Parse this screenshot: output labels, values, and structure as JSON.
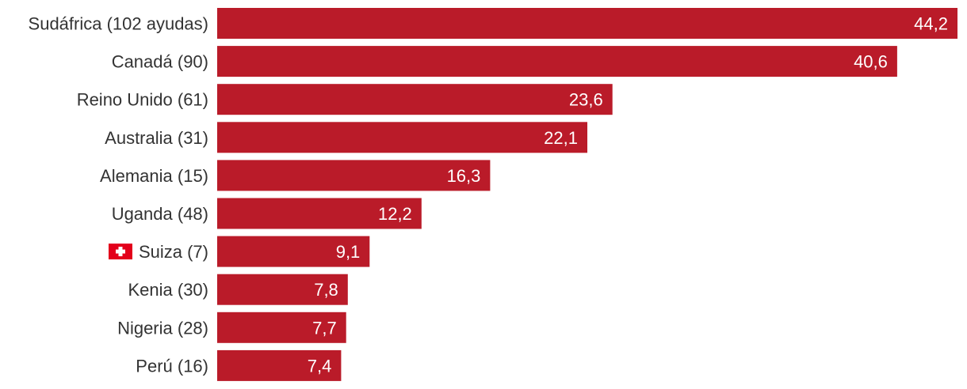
{
  "chart_data": {
    "type": "bar",
    "orientation": "horizontal",
    "title": "",
    "xlabel": "",
    "ylabel": "",
    "categories": [
      "Sudáfrica (102 ayudas)",
      "Canadá (90)",
      "Reino Unido (61)",
      "Australia (31)",
      "Alemania (15)",
      "Uganda (48)",
      "Suiza (7)",
      "Kenia (30)",
      "Nigeria (28)",
      "Perú (16)"
    ],
    "values": [
      44.2,
      40.6,
      23.6,
      22.1,
      16.3,
      12.2,
      9.1,
      7.8,
      7.7,
      7.4
    ],
    "value_labels": [
      "44,2",
      "40,6",
      "23,6",
      "22,1",
      "16,3",
      "12,2",
      "9,1",
      "7,8",
      "7,7",
      "7,4"
    ],
    "xlim": [
      0,
      44.2
    ],
    "grid": false,
    "legend": "none",
    "highlight_index": 6,
    "highlight_icon": "swiss-flag-icon",
    "colors": {
      "bar": "#ba1b29",
      "value_text": "#ffffff",
      "category_text": "#333333",
      "flag": "#e3001b"
    }
  }
}
